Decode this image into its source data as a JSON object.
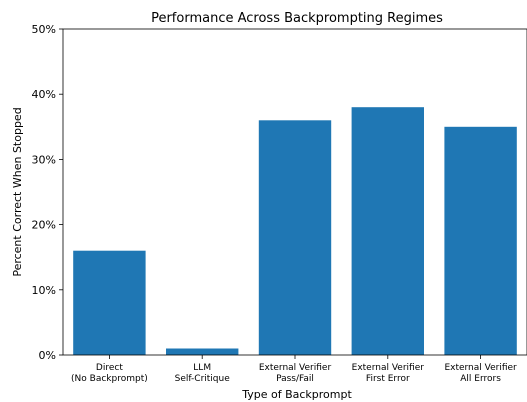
{
  "chart_data": {
    "type": "bar",
    "title": "Performance Across Backprompting Regimes",
    "xlabel": "Type of Backprompt",
    "ylabel": "Percent Correct When Stopped",
    "categories": [
      [
        "Direct",
        "(No Backprompt)"
      ],
      [
        "LLM",
        "Self-Critique"
      ],
      [
        "External Verifier",
        "Pass/Fail"
      ],
      [
        "External Verifier",
        "First Error"
      ],
      [
        "External Verifier",
        "All Errors"
      ]
    ],
    "values": [
      16,
      1,
      36,
      38,
      35
    ],
    "ylim": [
      0,
      50
    ],
    "yticks": [
      0,
      10,
      20,
      30,
      40,
      50
    ],
    "ytick_labels": [
      "0%",
      "10%",
      "20%",
      "30%",
      "40%",
      "50%"
    ],
    "grid": false,
    "bar_color": "#1f77b4"
  }
}
